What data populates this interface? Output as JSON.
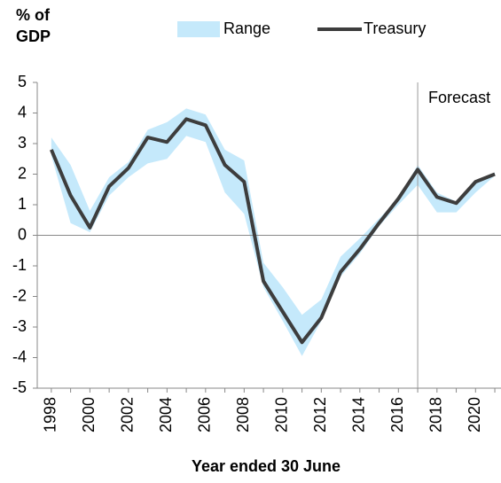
{
  "chart_data": {
    "type": "line",
    "y_label_lines": [
      "% of",
      "GDP"
    ],
    "x_label": "Year ended 30 June",
    "annotation": {
      "text": "Forecast",
      "x": 2017
    },
    "x": [
      1998,
      1999,
      2000,
      2001,
      2002,
      2003,
      2004,
      2005,
      2006,
      2007,
      2008,
      2009,
      2010,
      2011,
      2012,
      2013,
      2014,
      2015,
      2016,
      2017,
      2018,
      2019,
      2020,
      2021
    ],
    "series": [
      {
        "name": "Range",
        "kind": "band",
        "color": "#c5e9fb",
        "low": [
          2.6,
          0.4,
          0.1,
          1.3,
          1.9,
          2.35,
          2.5,
          3.25,
          3.05,
          1.4,
          0.7,
          -1.7,
          -2.8,
          -3.95,
          -2.8,
          -1.35,
          -0.6,
          0.3,
          1.0,
          1.65,
          0.75,
          0.75,
          1.4,
          1.95
        ],
        "high": [
          3.2,
          2.3,
          0.8,
          1.9,
          2.4,
          3.45,
          3.7,
          4.15,
          3.95,
          2.8,
          2.45,
          -0.9,
          -1.7,
          -2.6,
          -2.1,
          -0.7,
          -0.1,
          0.55,
          1.2,
          2.3,
          1.4,
          1.1,
          1.8,
          2.05
        ]
      },
      {
        "name": "Treasury",
        "color": "#3d3d3d",
        "values": [
          2.8,
          1.3,
          0.25,
          1.6,
          2.2,
          3.2,
          3.05,
          3.8,
          3.6,
          2.3,
          1.75,
          -1.5,
          -2.5,
          -3.5,
          -2.7,
          -1.2,
          -0.45,
          0.4,
          1.2,
          2.15,
          1.25,
          1.05,
          1.75,
          2.0
        ]
      }
    ],
    "xlim": [
      1997.27,
      2021.32
    ],
    "xticks": [
      1998,
      2000,
      2002,
      2004,
      2006,
      2008,
      2010,
      2012,
      2014,
      2016,
      2018,
      2020
    ],
    "ylim": [
      -5,
      5
    ],
    "yticks": [
      -5,
      -4,
      -3,
      -2,
      -1,
      0,
      1,
      2,
      3,
      4,
      5
    ]
  }
}
